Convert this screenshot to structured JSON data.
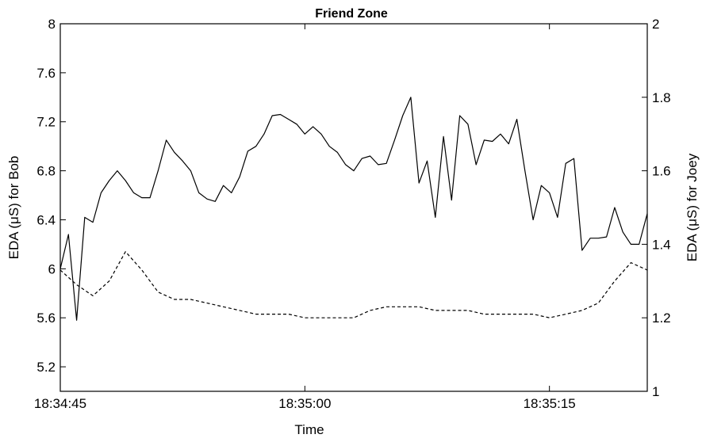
{
  "chart_data": {
    "type": "line",
    "title": "Friend Zone",
    "xlabel": "Time",
    "ylabel_left": "EDA (μS) for Bob",
    "ylabel_right": "EDA (μS) for Joey",
    "xlim": [
      "18:34:45",
      "18:35:21"
    ],
    "x_tick_labels": [
      "18:34:45",
      "18:35:00",
      "18:35:15"
    ],
    "ylim_left": [
      5,
      8
    ],
    "yticks_left": [
      "5.2",
      "5.6",
      "6",
      "6.4",
      "6.8",
      "7.2",
      "7.6",
      "8"
    ],
    "ylim_right": [
      1,
      2
    ],
    "yticks_right": [
      "1",
      "1.2",
      "1.4",
      "1.6",
      "1.8",
      "2"
    ],
    "grid": false,
    "legend": "none",
    "series": [
      {
        "axis": "left",
        "style": "solid",
        "color": "#000000",
        "x": [
          "18:34:45",
          "18:34:45.5",
          "18:34:46",
          "18:34:46.5",
          "18:34:47",
          "18:34:47.5",
          "18:34:48",
          "18:34:48.5",
          "18:34:49",
          "18:34:49.5",
          "18:34:50",
          "18:34:50.5",
          "18:34:51",
          "18:34:51.5",
          "18:34:52",
          "18:34:52.5",
          "18:34:53",
          "18:34:53.5",
          "18:34:54",
          "18:34:54.5",
          "18:34:55",
          "18:34:55.5",
          "18:34:56",
          "18:34:56.5",
          "18:34:57",
          "18:34:57.5",
          "18:34:58",
          "18:34:58.5",
          "18:34:59",
          "18:34:59.5",
          "18:35:00",
          "18:35:00.5",
          "18:35:01",
          "18:35:01.5",
          "18:35:02",
          "18:35:02.5",
          "18:35:03",
          "18:35:03.5",
          "18:35:04",
          "18:35:04.5",
          "18:35:05",
          "18:35:05.5",
          "18:35:06",
          "18:35:06.5",
          "18:35:07",
          "18:35:07.5",
          "18:35:08",
          "18:35:08.5",
          "18:35:09",
          "18:35:09.5",
          "18:35:10",
          "18:35:10.5",
          "18:35:11",
          "18:35:11.5",
          "18:35:12",
          "18:35:12.5",
          "18:35:13",
          "18:35:13.5",
          "18:35:14",
          "18:35:14.5",
          "18:35:15",
          "18:35:15.5",
          "18:35:16",
          "18:35:16.5",
          "18:35:17",
          "18:35:17.5",
          "18:35:18",
          "18:35:18.5",
          "18:35:19",
          "18:35:19.5",
          "18:35:20",
          "18:35:20.5",
          "18:35:21"
        ],
        "values": [
          6.0,
          6.28,
          5.58,
          6.42,
          6.38,
          6.62,
          6.72,
          6.8,
          6.72,
          6.62,
          6.58,
          6.58,
          6.8,
          7.05,
          6.95,
          6.88,
          6.8,
          6.62,
          6.57,
          6.55,
          6.68,
          6.62,
          6.75,
          6.96,
          7.0,
          7.1,
          7.25,
          7.26,
          7.22,
          7.18,
          7.1,
          7.16,
          7.1,
          7.0,
          6.95,
          6.85,
          6.8,
          6.9,
          6.92,
          6.85,
          6.86,
          7.05,
          7.25,
          7.4,
          6.7,
          6.88,
          6.42,
          7.08,
          6.56,
          7.25,
          7.18,
          6.85,
          7.05,
          7.04,
          7.1,
          7.02,
          7.22,
          6.8,
          6.4,
          6.68,
          6.62,
          6.42,
          6.86,
          6.9,
          6.15,
          6.25,
          6.25,
          6.26,
          6.5,
          6.3,
          6.2,
          6.2,
          6.45
        ]
      },
      {
        "axis": "right",
        "style": "dashed",
        "color": "#000000",
        "x": [
          "18:34:45",
          "18:34:46",
          "18:34:47",
          "18:34:48",
          "18:34:49",
          "18:34:50",
          "18:34:51",
          "18:34:52",
          "18:34:53",
          "18:34:54",
          "18:34:55",
          "18:34:56",
          "18:34:57",
          "18:34:58",
          "18:34:59",
          "18:35:00",
          "18:35:01",
          "18:35:02",
          "18:35:03",
          "18:35:04",
          "18:35:05",
          "18:35:06",
          "18:35:07",
          "18:35:08",
          "18:35:09",
          "18:35:10",
          "18:35:11",
          "18:35:12",
          "18:35:13",
          "18:35:14",
          "18:35:15",
          "18:35:16",
          "18:35:17",
          "18:35:18",
          "18:35:19",
          "18:35:20",
          "18:35:21"
        ],
        "values": [
          1.33,
          1.29,
          1.26,
          1.3,
          1.38,
          1.33,
          1.27,
          1.25,
          1.25,
          1.24,
          1.23,
          1.22,
          1.21,
          1.21,
          1.21,
          1.2,
          1.2,
          1.2,
          1.2,
          1.22,
          1.23,
          1.23,
          1.23,
          1.22,
          1.22,
          1.22,
          1.21,
          1.21,
          1.21,
          1.21,
          1.2,
          1.21,
          1.22,
          1.24,
          1.3,
          1.35,
          1.33
        ]
      }
    ]
  }
}
